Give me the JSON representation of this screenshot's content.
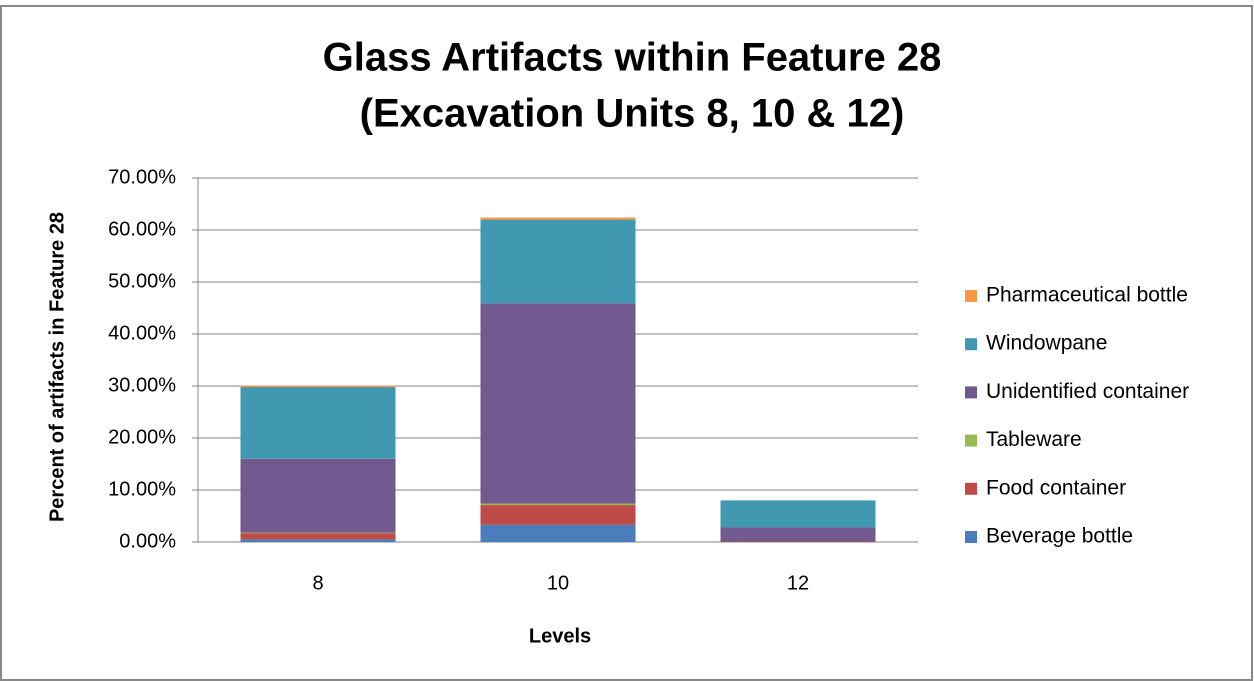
{
  "chart_data": {
    "type": "stacked_bar",
    "title": [
      "Glass Artifacts within Feature 28",
      "(Excavation Units 8, 10 & 12)"
    ],
    "x_label": "Levels",
    "y_label": "Percent of artifacts in Feature 28",
    "categories": [
      "8",
      "10",
      "12"
    ],
    "series": [
      {
        "name": "Beverage bottle",
        "color": "#4a7ebb",
        "values": [
          0.5,
          3.3,
          0
        ]
      },
      {
        "name": "Food container",
        "color": "#be4b48",
        "values": [
          1.2,
          3.8,
          0.1
        ]
      },
      {
        "name": "Tableware",
        "color": "#98b954",
        "values": [
          0.1,
          0.3,
          0
        ]
      },
      {
        "name": "Unidentified container",
        "color": "#725990",
        "values": [
          14.2,
          38.5,
          2.7
        ]
      },
      {
        "name": "Windowpane",
        "color": "#4099b0",
        "values": [
          13.8,
          16.1,
          5.2
        ]
      },
      {
        "name": "Pharmaceutical bottle",
        "color": "#f79646",
        "values": [
          0.3,
          0.4,
          0
        ]
      }
    ],
    "ylim": [
      0,
      70
    ],
    "yticks": [
      {
        "value": 0,
        "label": "0.00%"
      },
      {
        "value": 10,
        "label": "10.00%"
      },
      {
        "value": 20,
        "label": "20.00%"
      },
      {
        "value": 30,
        "label": "30.00%"
      },
      {
        "value": 40,
        "label": "40.00%"
      },
      {
        "value": 50,
        "label": "50.00%"
      },
      {
        "value": 60,
        "label": "60.00%"
      },
      {
        "value": 70,
        "label": "70.00%"
      }
    ],
    "grid": true,
    "legend": "right"
  }
}
